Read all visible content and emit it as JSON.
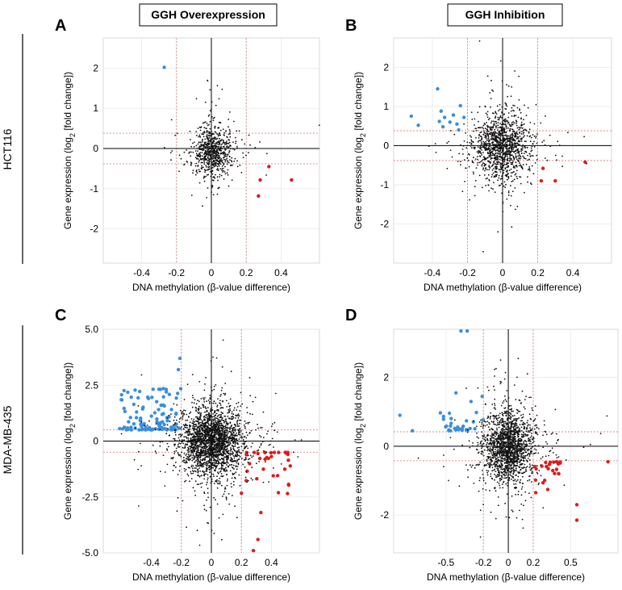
{
  "headers": {
    "col1": "GGH Overexpression",
    "col2": "GGH Inhibition",
    "row1": "HCT116",
    "row2": "MDA-MB-435"
  },
  "colors": {
    "blue": "#3a8fdb",
    "red": "#dd1c1c",
    "black": "#111111",
    "threshold": "#d88a8a",
    "grid": "#e9e9e9"
  },
  "chart_data": [
    {
      "type": "scatter",
      "panel": "A",
      "title": "",
      "xlabel": "DNA methylation (β-value difference)",
      "ylabel": "Gene expression (log2 [fold change])",
      "xlim": [
        -0.62,
        0.62
      ],
      "ylim": [
        -2.85,
        2.75
      ],
      "xticks": [
        "-0.4",
        "-0.2",
        "0",
        "0.2",
        "0.4"
      ],
      "xtick_values": [
        -0.4,
        -0.2,
        0,
        0.2,
        0.4
      ],
      "yticks": [
        "2",
        "1",
        "0",
        "-1",
        "-2"
      ],
      "ytick_values": [
        2,
        1,
        0,
        -1,
        -2
      ],
      "thresholds": {
        "x": [
          -0.2,
          0.2
        ],
        "y": [
          -0.38,
          0.38
        ]
      },
      "series": [
        {
          "name": "hypomethylated-upregulated",
          "color": "blue",
          "points": [
            [
              -0.27,
              2.02
            ]
          ]
        },
        {
          "name": "hypermethylated-downregulated",
          "color": "red",
          "points": [
            [
              0.28,
              -0.78
            ],
            [
              0.27,
              -1.18
            ],
            [
              0.33,
              -0.45
            ],
            [
              0.46,
              -0.78
            ]
          ]
        },
        {
          "name": "not-significant",
          "color": "black",
          "cloud": {
            "n": 750,
            "sx": 0.055,
            "sy": 0.32,
            "cx": 0.01,
            "cy": -0.05,
            "seed": 11
          }
        }
      ]
    },
    {
      "type": "scatter",
      "panel": "B",
      "title": "",
      "xlabel": "DNA methylation (β-value difference)",
      "ylabel": "Gene expression (log2 [fold change])",
      "xlim": [
        -0.62,
        0.62
      ],
      "ylim": [
        -3.0,
        2.75
      ],
      "xticks": [
        "-0.4",
        "-0.2",
        "0",
        "0.2",
        "0.4"
      ],
      "xtick_values": [
        -0.4,
        -0.2,
        0,
        0.2,
        0.4
      ],
      "yticks": [
        "2",
        "1",
        "0",
        "-1",
        "-2"
      ],
      "ytick_values": [
        2,
        1,
        0,
        -1,
        -2
      ],
      "thresholds": {
        "x": [
          -0.2,
          0.2
        ],
        "y": [
          -0.38,
          0.38
        ]
      },
      "series": [
        {
          "name": "hypomethylated-upregulated",
          "color": "blue",
          "points": [
            [
              -0.52,
              0.75
            ],
            [
              -0.48,
              0.52
            ],
            [
              -0.37,
              1.45
            ],
            [
              -0.35,
              0.88
            ],
            [
              -0.36,
              0.62
            ],
            [
              -0.33,
              0.72
            ],
            [
              -0.3,
              0.6
            ],
            [
              -0.28,
              0.78
            ],
            [
              -0.26,
              0.55
            ],
            [
              -0.24,
              1.02
            ],
            [
              -0.22,
              0.72
            ],
            [
              -0.34,
              0.48
            ],
            [
              -0.25,
              0.4
            ]
          ]
        },
        {
          "name": "hypermethylated-downregulated",
          "color": "red",
          "points": [
            [
              0.23,
              -0.58
            ],
            [
              0.22,
              -0.9
            ],
            [
              0.3,
              -0.9
            ],
            [
              0.47,
              -0.42
            ]
          ]
        },
        {
          "name": "not-significant",
          "color": "black",
          "cloud": {
            "n": 1250,
            "sx": 0.075,
            "sy": 0.4,
            "cx": -0.01,
            "cy": 0.0,
            "seed": 23
          }
        }
      ]
    },
    {
      "type": "scatter",
      "panel": "C",
      "title": "",
      "xlabel": "DNA methylation (β-value difference)",
      "ylabel": "Gene expression (log2 [fold change])",
      "xlim": [
        -0.72,
        0.72
      ],
      "ylim": [
        -5.0,
        5.0
      ],
      "xticks": [
        "-0.4",
        "-0.2",
        "0",
        "0.2",
        "0.4"
      ],
      "xtick_values": [
        -0.4,
        -0.2,
        0,
        0.2,
        0.4
      ],
      "yticks": [
        "5.0",
        "2.5",
        "0",
        "-2.5",
        "-5.0"
      ],
      "ytick_values": [
        5.0,
        2.5,
        0,
        -2.5,
        -5.0
      ],
      "thresholds": {
        "x": [
          -0.2,
          0.2
        ],
        "y": [
          -0.5,
          0.5
        ]
      },
      "series": [
        {
          "name": "hypomethylated-upregulated",
          "color": "blue",
          "cloud": {
            "n": 110,
            "xmin": -0.62,
            "xmax": -0.2,
            "ymin": 0.5,
            "ymax": 2.4,
            "skew": 2.2,
            "seed": 5
          },
          "points": [
            [
              -0.21,
              3.7
            ],
            [
              -0.22,
              3.2
            ],
            [
              -0.6,
              1.85
            ],
            [
              -0.3,
              2.2
            ]
          ]
        },
        {
          "name": "hypermethylated-downregulated",
          "color": "red",
          "cloud": {
            "n": 32,
            "xmin": 0.2,
            "xmax": 0.55,
            "ymin": -2.4,
            "ymax": -0.5,
            "skew": 2.0,
            "seed": 9
          },
          "points": [
            [
              0.33,
              -3.2
            ],
            [
              0.31,
              -4.4
            ],
            [
              0.28,
              -4.9
            ]
          ]
        },
        {
          "name": "not-significant",
          "color": "black",
          "cloud": {
            "n": 2400,
            "sx": 0.1,
            "sy": 0.75,
            "cx": 0.0,
            "cy": 0.0,
            "seed": 37
          }
        }
      ]
    },
    {
      "type": "scatter",
      "panel": "D",
      "title": "",
      "xlabel": "DNA methylation (β-value difference)",
      "ylabel": "Gene expression (log2 [fold change])",
      "xlim": [
        -0.92,
        0.88
      ],
      "ylim": [
        -3.1,
        3.4
      ],
      "xticks": [
        "-0.5",
        "-0.2",
        "0",
        "0.2",
        "0.5"
      ],
      "xtick_values": [
        -0.5,
        -0.2,
        0,
        0.2,
        0.5
      ],
      "yticks": [
        "2",
        "0",
        "-2"
      ],
      "ytick_values": [
        2,
        0,
        -2
      ],
      "thresholds": {
        "x": [
          -0.2,
          0.2
        ],
        "y": [
          -0.42,
          0.42
        ]
      },
      "series": [
        {
          "name": "hypomethylated-upregulated",
          "color": "blue",
          "cloud": {
            "n": 28,
            "xmin": -0.55,
            "xmax": -0.2,
            "ymin": 0.45,
            "ymax": 1.1,
            "skew": 1.8,
            "seed": 3
          },
          "points": [
            [
              -0.38,
              3.35
            ],
            [
              -0.33,
              3.35
            ],
            [
              -0.87,
              0.9
            ],
            [
              -0.77,
              0.45
            ],
            [
              -0.42,
              1.55
            ],
            [
              -0.3,
              1.3
            ],
            [
              -0.21,
              1.45
            ]
          ]
        },
        {
          "name": "hypermethylated-downregulated",
          "color": "red",
          "cloud": {
            "n": 22,
            "xmin": 0.2,
            "xmax": 0.42,
            "ymin": -1.3,
            "ymax": -0.45,
            "skew": 1.8,
            "seed": 7
          },
          "points": [
            [
              0.55,
              -1.7
            ],
            [
              0.55,
              -2.15
            ],
            [
              0.8,
              -0.45
            ],
            [
              0.22,
              -1.35
            ]
          ]
        },
        {
          "name": "not-significant",
          "color": "black",
          "cloud": {
            "n": 1700,
            "sx": 0.1,
            "sy": 0.5,
            "cx": 0.0,
            "cy": 0.0,
            "seed": 53
          }
        }
      ]
    }
  ]
}
